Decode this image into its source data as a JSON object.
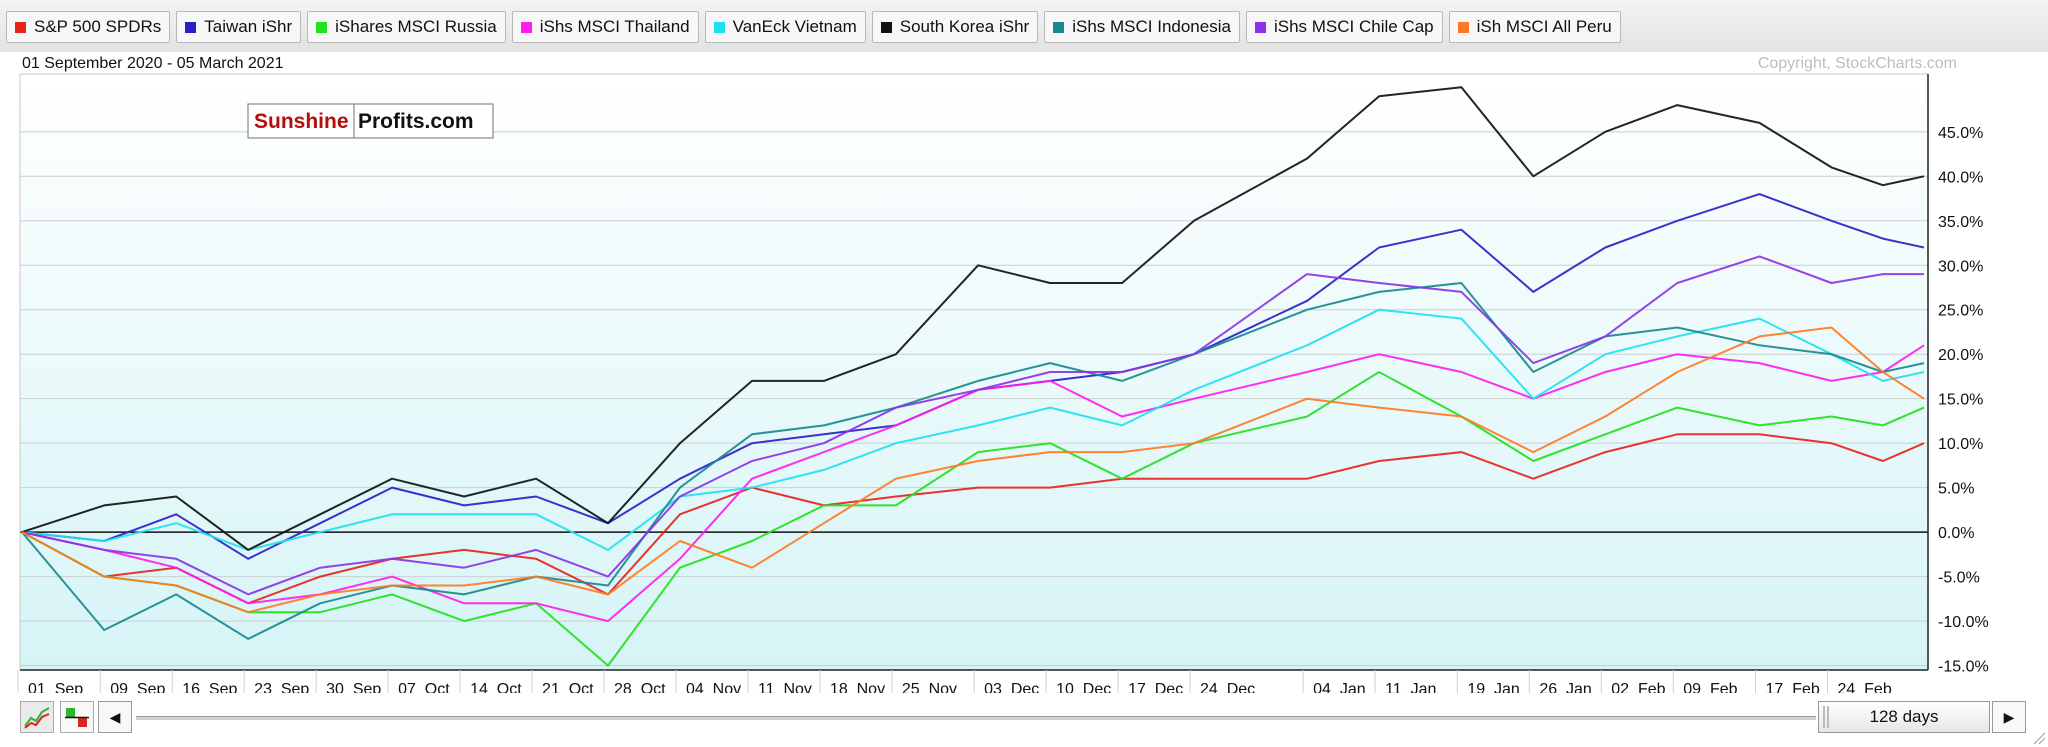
{
  "legend": [
    {
      "label": "S&P 500 SPDRs",
      "color": "#e8221c"
    },
    {
      "label": "Taiwan iShr",
      "color": "#2b1fc8"
    },
    {
      "label": "iShares MSCI Russia",
      "color": "#22e01c"
    },
    {
      "label": "iShs MSCI Thailand",
      "color": "#ff1cf0"
    },
    {
      "label": "VanEck Vietnam",
      "color": "#22dff0"
    },
    {
      "label": "South Korea iShr",
      "color": "#111111"
    },
    {
      "label": "iShs MSCI Indonesia",
      "color": "#168a8e"
    },
    {
      "label": "iShs MSCI Chile Cap",
      "color": "#8a33e8"
    },
    {
      "label": "iSh MSCI All Peru",
      "color": "#ff7a22"
    }
  ],
  "date_range": "01 September 2020 - 05 March 2021",
  "copyright": "Copyright, StockCharts.com",
  "watermark": {
    "part1": "Sunshine",
    "part2": "Profits.com"
  },
  "controls": {
    "period_label": "128 days",
    "left_arrow": "◀",
    "right_arrow": "▶"
  },
  "chart_data": {
    "type": "line",
    "title": "",
    "ylabel": "",
    "xlabel": "",
    "y_unit": "%",
    "ylim": [
      -15.5,
      51.5
    ],
    "yticks": [
      -15,
      -10,
      -5,
      0,
      5,
      10,
      15,
      20,
      25,
      30,
      35,
      40,
      45
    ],
    "ytick_labels": [
      "-15.0%",
      "-10.0%",
      "-5.0%",
      "0.0%",
      "5.0%",
      "10.0%",
      "15.0%",
      "20.0%",
      "25.0%",
      "30.0%",
      "35.0%",
      "40.0%",
      "45.0%"
    ],
    "xtick_labels": [
      "01  Sep",
      "09  Sep",
      "16  Sep",
      "23  Sep",
      "30  Sep",
      "07  Oct",
      "14  Oct",
      "21  Oct",
      "28  Oct",
      "04  Nov",
      "11  Nov",
      "18  Nov",
      "25  Nov",
      "03  Dec",
      "10  Dec",
      "17  Dec",
      "24  Dec",
      "04  Jan",
      "11  Jan",
      "19  Jan",
      "26  Jan",
      "02  Feb",
      "09  Feb",
      "17  Feb",
      "24  Feb"
    ],
    "xtick_dates": [
      "2020-09-01",
      "2020-09-09",
      "2020-09-16",
      "2020-09-23",
      "2020-09-30",
      "2020-10-07",
      "2020-10-14",
      "2020-10-21",
      "2020-10-28",
      "2020-11-04",
      "2020-11-11",
      "2020-11-18",
      "2020-11-25",
      "2020-12-03",
      "2020-12-10",
      "2020-12-17",
      "2020-12-24",
      "2021-01-04",
      "2021-01-11",
      "2021-01-19",
      "2021-01-26",
      "2021-02-02",
      "2021-02-09",
      "2021-02-17",
      "2021-02-24"
    ],
    "x_start": "2020-09-01",
    "x_end": "2021-03-05",
    "grid": true,
    "legend_position": "top",
    "series": [
      {
        "name": "S&P 500 SPDRs",
        "color": "#e8221c",
        "x": [
          "2020-09-01",
          "2020-09-09",
          "2020-09-16",
          "2020-09-23",
          "2020-09-30",
          "2020-10-07",
          "2020-10-14",
          "2020-10-21",
          "2020-10-28",
          "2020-11-04",
          "2020-11-11",
          "2020-11-18",
          "2020-11-25",
          "2020-12-03",
          "2020-12-10",
          "2020-12-17",
          "2020-12-24",
          "2021-01-04",
          "2021-01-11",
          "2021-01-19",
          "2021-01-26",
          "2021-02-02",
          "2021-02-09",
          "2021-02-17",
          "2021-02-24",
          "2021-03-01",
          "2021-03-05"
        ],
        "values": [
          0,
          -5,
          -4,
          -8,
          -5,
          -3,
          -2,
          -3,
          -7,
          2,
          5,
          3,
          4,
          5,
          5,
          6,
          6,
          6,
          8,
          9,
          6,
          9,
          11,
          11,
          10,
          8,
          10
        ]
      },
      {
        "name": "Taiwan iShr",
        "color": "#2b1fc8",
        "x": [
          "2020-09-01",
          "2020-09-09",
          "2020-09-16",
          "2020-09-23",
          "2020-09-30",
          "2020-10-07",
          "2020-10-14",
          "2020-10-21",
          "2020-10-28",
          "2020-11-04",
          "2020-11-11",
          "2020-11-18",
          "2020-11-25",
          "2020-12-03",
          "2020-12-10",
          "2020-12-17",
          "2020-12-24",
          "2021-01-04",
          "2021-01-11",
          "2021-01-19",
          "2021-01-26",
          "2021-02-02",
          "2021-02-09",
          "2021-02-17",
          "2021-02-24",
          "2021-03-01",
          "2021-03-05"
        ],
        "values": [
          0,
          -1,
          2,
          -3,
          1,
          5,
          3,
          4,
          1,
          6,
          10,
          11,
          12,
          16,
          17,
          18,
          20,
          26,
          32,
          34,
          27,
          32,
          35,
          38,
          35,
          33,
          32
        ]
      },
      {
        "name": "iShares MSCI Russia",
        "color": "#22e01c",
        "x": [
          "2020-09-01",
          "2020-09-09",
          "2020-09-16",
          "2020-09-23",
          "2020-09-30",
          "2020-10-07",
          "2020-10-14",
          "2020-10-21",
          "2020-10-28",
          "2020-11-04",
          "2020-11-11",
          "2020-11-18",
          "2020-11-25",
          "2020-12-03",
          "2020-12-10",
          "2020-12-17",
          "2020-12-24",
          "2021-01-04",
          "2021-01-11",
          "2021-01-19",
          "2021-01-26",
          "2021-02-02",
          "2021-02-09",
          "2021-02-17",
          "2021-02-24",
          "2021-03-01",
          "2021-03-05"
        ],
        "values": [
          0,
          -5,
          -6,
          -9,
          -9,
          -7,
          -10,
          -8,
          -15,
          -4,
          -1,
          3,
          3,
          9,
          10,
          6,
          10,
          13,
          18,
          13,
          8,
          11,
          14,
          12,
          13,
          12,
          14
        ]
      },
      {
        "name": "iShs MSCI Thailand",
        "color": "#ff1cf0",
        "x": [
          "2020-09-01",
          "2020-09-09",
          "2020-09-16",
          "2020-09-23",
          "2020-09-30",
          "2020-10-07",
          "2020-10-14",
          "2020-10-21",
          "2020-10-28",
          "2020-11-04",
          "2020-11-11",
          "2020-11-18",
          "2020-11-25",
          "2020-12-03",
          "2020-12-10",
          "2020-12-17",
          "2020-12-24",
          "2021-01-04",
          "2021-01-11",
          "2021-01-19",
          "2021-01-26",
          "2021-02-02",
          "2021-02-09",
          "2021-02-17",
          "2021-02-24",
          "2021-03-01",
          "2021-03-05"
        ],
        "values": [
          0,
          -2,
          -4,
          -8,
          -7,
          -5,
          -8,
          -8,
          -10,
          -3,
          6,
          9,
          12,
          16,
          17,
          13,
          15,
          18,
          20,
          18,
          15,
          18,
          20,
          19,
          17,
          18,
          21
        ]
      },
      {
        "name": "VanEck Vietnam",
        "color": "#22dff0",
        "x": [
          "2020-09-01",
          "2020-09-09",
          "2020-09-16",
          "2020-09-23",
          "2020-09-30",
          "2020-10-07",
          "2020-10-14",
          "2020-10-21",
          "2020-10-28",
          "2020-11-04",
          "2020-11-11",
          "2020-11-18",
          "2020-11-25",
          "2020-12-03",
          "2020-12-10",
          "2020-12-17",
          "2020-12-24",
          "2021-01-04",
          "2021-01-11",
          "2021-01-19",
          "2021-01-26",
          "2021-02-02",
          "2021-02-09",
          "2021-02-17",
          "2021-02-24",
          "2021-03-01",
          "2021-03-05"
        ],
        "values": [
          0,
          -1,
          1,
          -2,
          0,
          2,
          2,
          2,
          -2,
          4,
          5,
          7,
          10,
          12,
          14,
          12,
          16,
          21,
          25,
          24,
          15,
          20,
          22,
          24,
          20,
          17,
          18
        ]
      },
      {
        "name": "South Korea iShr",
        "color": "#111111",
        "x": [
          "2020-09-01",
          "2020-09-09",
          "2020-09-16",
          "2020-09-23",
          "2020-09-30",
          "2020-10-07",
          "2020-10-14",
          "2020-10-21",
          "2020-10-28",
          "2020-11-04",
          "2020-11-11",
          "2020-11-18",
          "2020-11-25",
          "2020-12-03",
          "2020-12-10",
          "2020-12-17",
          "2020-12-24",
          "2021-01-04",
          "2021-01-11",
          "2021-01-19",
          "2021-01-26",
          "2021-02-02",
          "2021-02-09",
          "2021-02-17",
          "2021-02-24",
          "2021-03-01",
          "2021-03-05"
        ],
        "values": [
          0,
          3,
          4,
          -2,
          2,
          6,
          4,
          6,
          1,
          10,
          17,
          17,
          20,
          30,
          28,
          28,
          35,
          42,
          49,
          50,
          40,
          45,
          48,
          46,
          41,
          39,
          40
        ]
      },
      {
        "name": "iShs MSCI Indonesia",
        "color": "#168a8e",
        "x": [
          "2020-09-01",
          "2020-09-09",
          "2020-09-16",
          "2020-09-23",
          "2020-09-30",
          "2020-10-07",
          "2020-10-14",
          "2020-10-21",
          "2020-10-28",
          "2020-11-04",
          "2020-11-11",
          "2020-11-18",
          "2020-11-25",
          "2020-12-03",
          "2020-12-10",
          "2020-12-17",
          "2020-12-24",
          "2021-01-04",
          "2021-01-11",
          "2021-01-19",
          "2021-01-26",
          "2021-02-02",
          "2021-02-09",
          "2021-02-17",
          "2021-02-24",
          "2021-03-01",
          "2021-03-05"
        ],
        "values": [
          0,
          -11,
          -7,
          -12,
          -8,
          -6,
          -7,
          -5,
          -6,
          5,
          11,
          12,
          14,
          17,
          19,
          17,
          20,
          25,
          27,
          28,
          18,
          22,
          23,
          21,
          20,
          18,
          19
        ]
      },
      {
        "name": "iShs MSCI Chile Cap",
        "color": "#8a33e8",
        "x": [
          "2020-09-01",
          "2020-09-09",
          "2020-09-16",
          "2020-09-23",
          "2020-09-30",
          "2020-10-07",
          "2020-10-14",
          "2020-10-21",
          "2020-10-28",
          "2020-11-04",
          "2020-11-11",
          "2020-11-18",
          "2020-11-25",
          "2020-12-03",
          "2020-12-10",
          "2020-12-17",
          "2020-12-24",
          "2021-01-04",
          "2021-01-11",
          "2021-01-19",
          "2021-01-26",
          "2021-02-02",
          "2021-02-09",
          "2021-02-17",
          "2021-02-24",
          "2021-03-01",
          "2021-03-05"
        ],
        "values": [
          0,
          -2,
          -3,
          -7,
          -4,
          -3,
          -4,
          -2,
          -5,
          4,
          8,
          10,
          14,
          16,
          18,
          18,
          20,
          29,
          28,
          27,
          19,
          22,
          28,
          31,
          28,
          29,
          29
        ]
      },
      {
        "name": "iSh MSCI All Peru",
        "color": "#ff7a22",
        "x": [
          "2020-09-01",
          "2020-09-09",
          "2020-09-16",
          "2020-09-23",
          "2020-09-30",
          "2020-10-07",
          "2020-10-14",
          "2020-10-21",
          "2020-10-28",
          "2020-11-04",
          "2020-11-11",
          "2020-11-18",
          "2020-11-25",
          "2020-12-03",
          "2020-12-10",
          "2020-12-17",
          "2020-12-24",
          "2021-01-04",
          "2021-01-11",
          "2021-01-19",
          "2021-01-26",
          "2021-02-02",
          "2021-02-09",
          "2021-02-17",
          "2021-02-24",
          "2021-03-01",
          "2021-03-05"
        ],
        "values": [
          0,
          -5,
          -6,
          -9,
          -7,
          -6,
          -6,
          -5,
          -7,
          -1,
          -4,
          1,
          6,
          8,
          9,
          9,
          10,
          15,
          14,
          13,
          9,
          13,
          18,
          22,
          23,
          18,
          15
        ]
      }
    ]
  }
}
